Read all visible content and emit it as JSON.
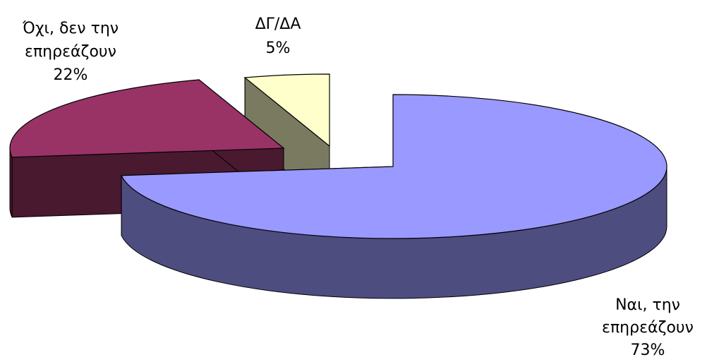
{
  "chart_data": {
    "type": "pie",
    "style": "3d-exploded",
    "title": "",
    "slices": [
      {
        "label_line1": "Ναι, την",
        "label_line2": "επηρεάζουν",
        "value": 73,
        "pct": "73%",
        "color": "#9999ff",
        "side_color": "#4d4d80"
      },
      {
        "label_line1": "Όχι, δεν την",
        "label_line2": "επηρεάζουν",
        "value": 22,
        "pct": "22%",
        "color": "#993366",
        "side_color": "#4d1a33"
      },
      {
        "label_line1": "ΔΓ/ΔΑ",
        "label_line2": "",
        "value": 5,
        "pct": "5%",
        "color": "#ffffcc",
        "side_color": "#808066"
      }
    ],
    "legend": "none"
  }
}
